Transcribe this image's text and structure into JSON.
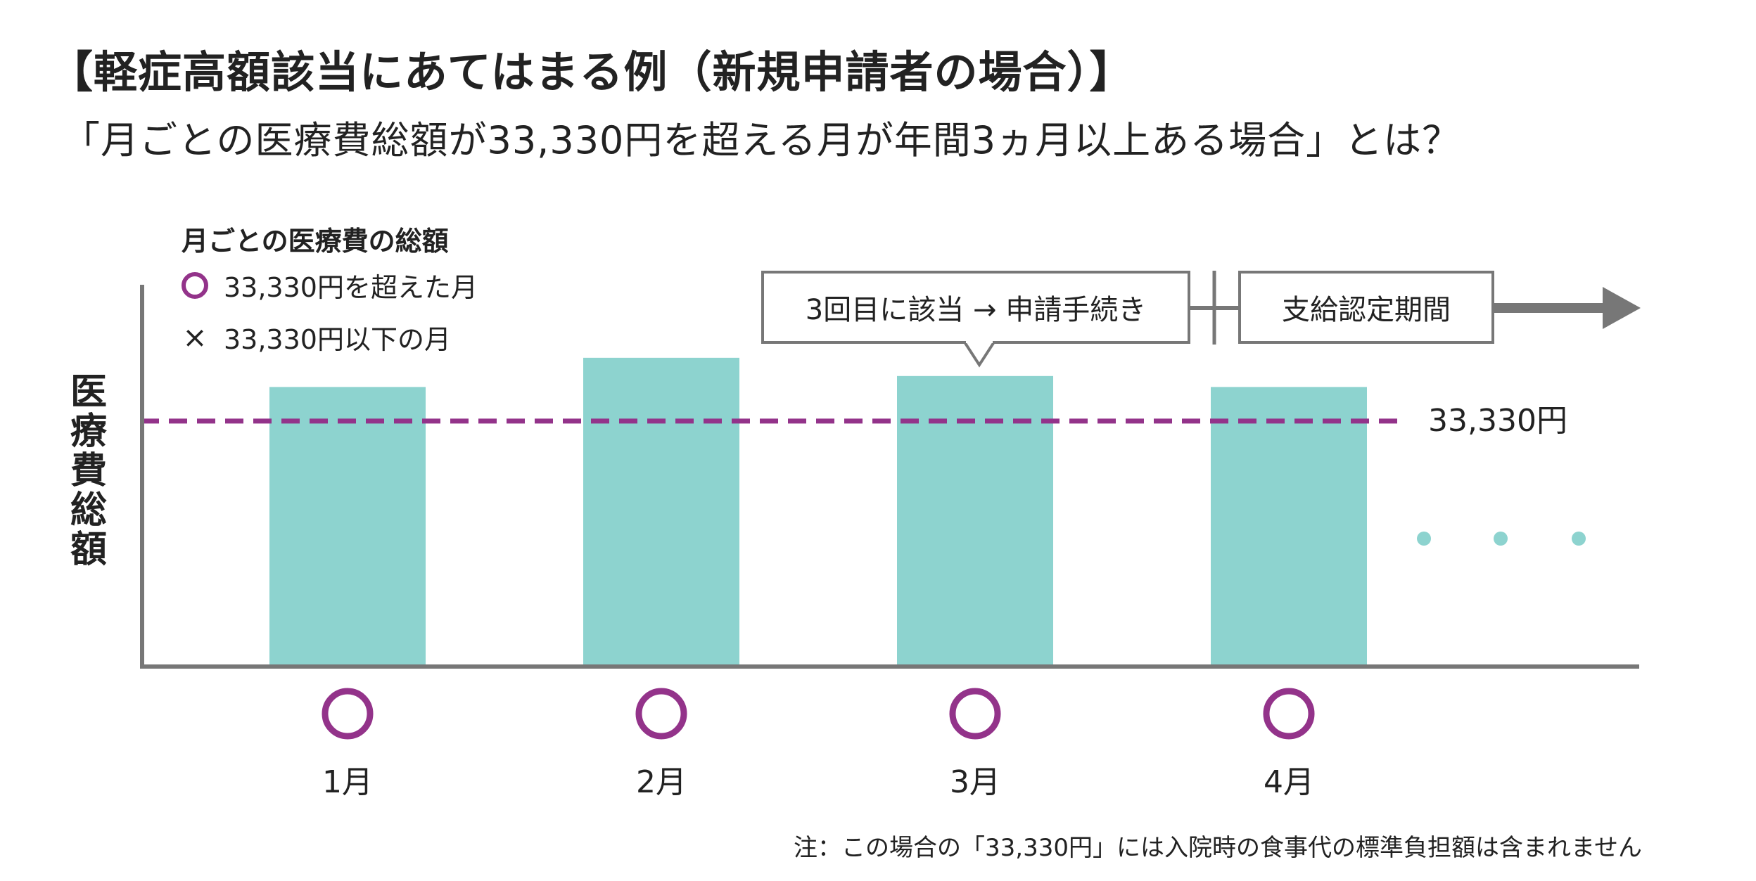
{
  "title": "【軽症高額該当にあてはまる例（新規申請者の場合）】",
  "subtitle": "「月ごとの医療費総額が33,330円を超える月が年間3ヵ月以上ある場合」とは？",
  "colors": {
    "bar": "#8DD3CF",
    "threshold": "#93338A",
    "dots": "#8DD3CF",
    "axis": "#777777"
  },
  "legend": {
    "title": "月ごとの医療費の総額",
    "over": "33,330円を超えた月",
    "under": "33,330円以下の月",
    "under_icon": "×"
  },
  "chart_data": {
    "type": "bar",
    "categories": [
      "1月",
      "2月",
      "3月",
      "4月"
    ],
    "values": [
      38000,
      42000,
      39500,
      38000
    ],
    "markers": [
      "over",
      "over",
      "over",
      "over"
    ],
    "ylabel": "医療費総額",
    "ylim": [
      0,
      52000
    ],
    "threshold": {
      "value": 33330,
      "label": "33,330円",
      "style": "dashed"
    },
    "continuation": "...",
    "grid": false
  },
  "callout": {
    "text": "3回目に該当 → 申請手続き"
  },
  "period": {
    "text": "支給認定期間"
  },
  "note": "注：この場合の「33,330円」には入院時の食事代の標準負担額は含まれません"
}
